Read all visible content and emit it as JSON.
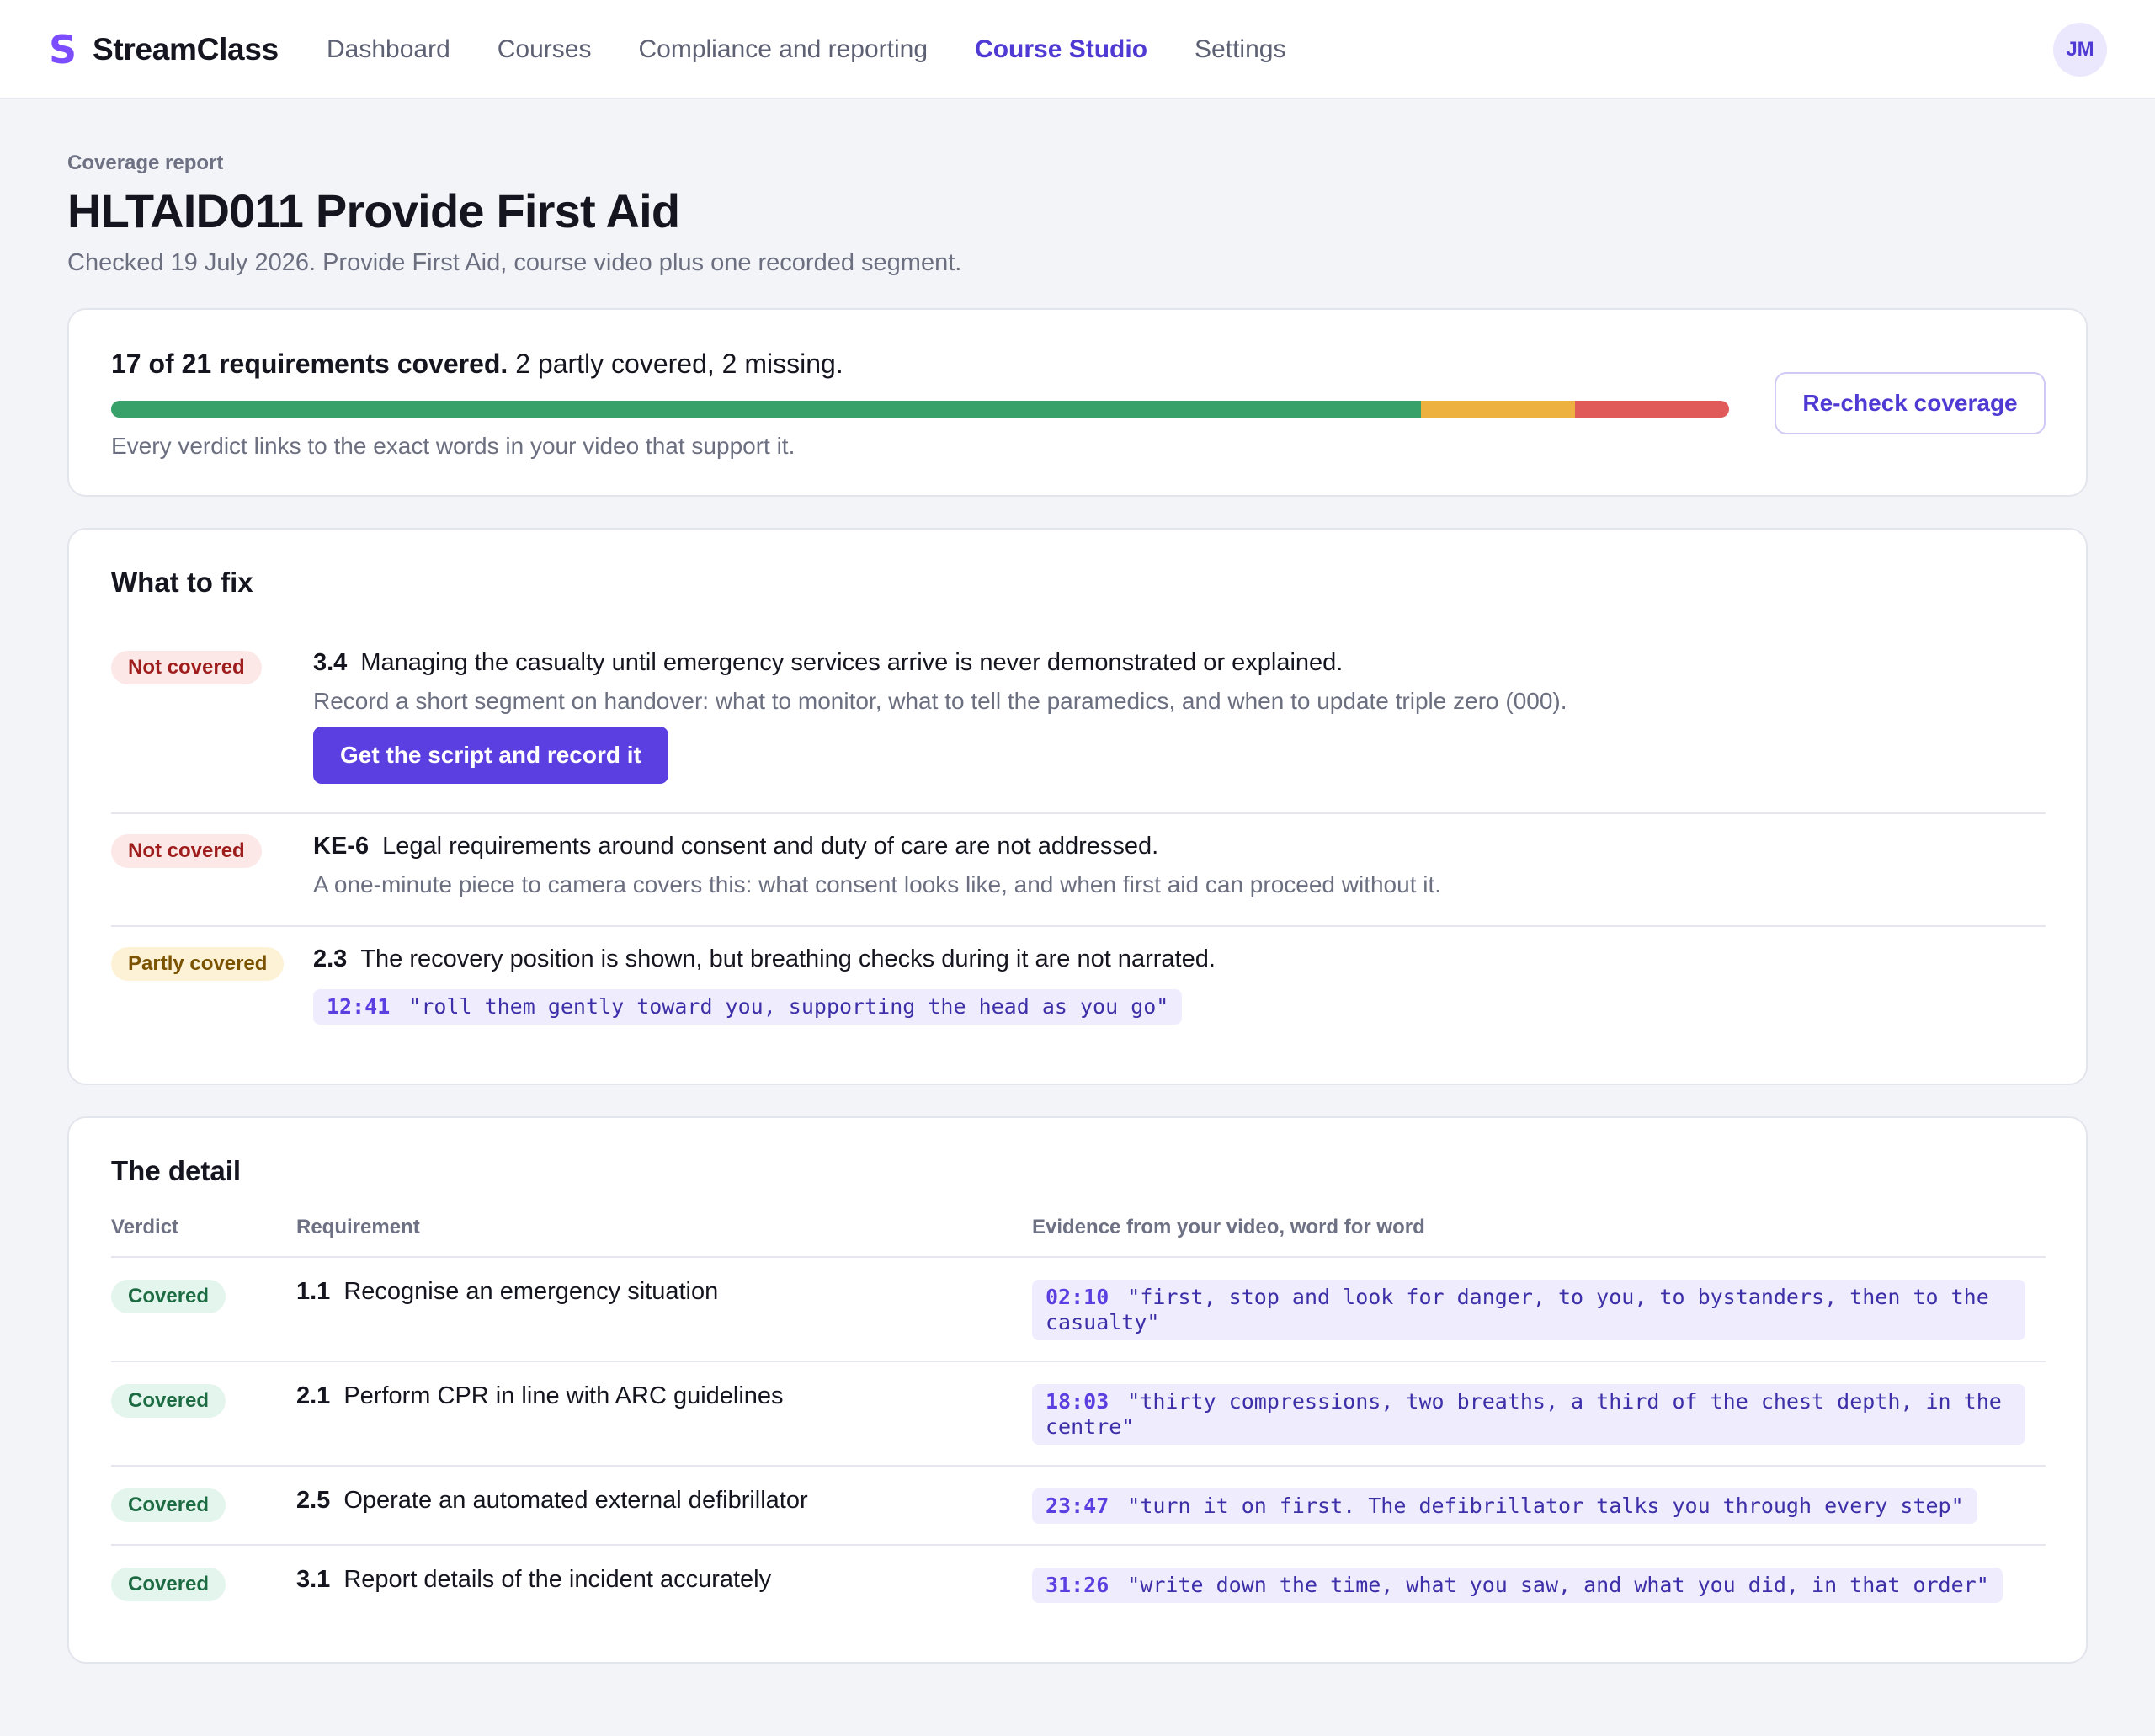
{
  "nav": {
    "brand_mark": "S",
    "brand_name": "StreamClass",
    "items": [
      {
        "label": "Dashboard",
        "active": false
      },
      {
        "label": "Courses",
        "active": false
      },
      {
        "label": "Compliance and reporting",
        "active": false
      },
      {
        "label": "Course Studio",
        "active": true
      },
      {
        "label": "Settings",
        "active": false
      }
    ],
    "avatar_initials": "JM"
  },
  "header": {
    "eyebrow": "Coverage report",
    "title": "HLTAID011 Provide First Aid",
    "subtitle": "Checked 19 July 2026. Provide First Aid, course video plus one recorded segment."
  },
  "summary": {
    "headline_bold": "17 of 21 requirements covered.",
    "headline_rest": "2 partly covered, 2 missing.",
    "covered": 17,
    "partly": 2,
    "missing": 2,
    "total": 21,
    "note": "Every verdict links to the exact words in your video that support it.",
    "recheck_label": "Re-check coverage",
    "colors": {
      "covered": "#38a169",
      "partly": "#ecb13f",
      "missing": "#e05a5a"
    }
  },
  "fix": {
    "title": "What to fix",
    "items": [
      {
        "badge": "Not covered",
        "code": "3.4",
        "text": "Managing the casualty until emergency services arrive is never demonstrated or explained.",
        "hint": "Record a short segment on handover: what to monitor, what to tell the paramedics, and when to update triple zero (000).",
        "action": "Get the script and record it"
      },
      {
        "badge": "Not covered",
        "code": "KE-6",
        "text": "Legal requirements around consent and duty of care are not addressed.",
        "hint": "A one-minute piece to camera covers this: what consent looks like, and when first aid can proceed without it."
      },
      {
        "badge": "Partly covered",
        "code": "2.3",
        "text": "The recovery position is shown, but breathing checks during it are not narrated.",
        "quote_time": "12:41",
        "quote_text": "\"roll them gently toward you, supporting the head as you go\""
      }
    ]
  },
  "detail": {
    "title": "The detail",
    "columns": [
      "Verdict",
      "Requirement",
      "Evidence from your video, word for word"
    ],
    "rows": [
      {
        "verdict": "Covered",
        "code": "1.1",
        "requirement": "Recognise an emergency situation",
        "time": "02:10",
        "quote": "\"first, stop and look for danger, to you, to bystanders, then to the casualty\""
      },
      {
        "verdict": "Covered",
        "code": "2.1",
        "requirement": "Perform CPR in line with ARC guidelines",
        "time": "18:03",
        "quote": "\"thirty compressions, two breaths, a third of the chest depth, in the centre\""
      },
      {
        "verdict": "Covered",
        "code": "2.5",
        "requirement": "Operate an automated external defibrillator",
        "time": "23:47",
        "quote": "\"turn it on first. The defibrillator talks you through every step\""
      },
      {
        "verdict": "Covered",
        "code": "3.1",
        "requirement": "Report details of the incident accurately",
        "time": "31:26",
        "quote": "\"write down the time, what you saw, and what you did, in that order\""
      }
    ]
  }
}
